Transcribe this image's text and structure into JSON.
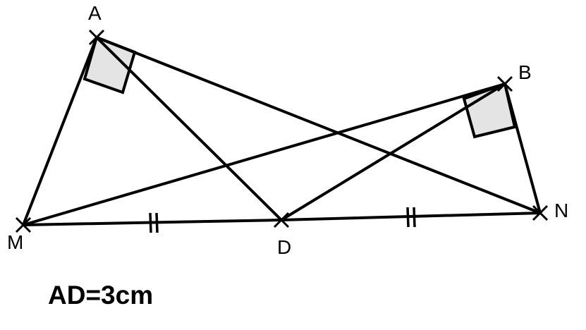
{
  "points": {
    "A": "A",
    "B": "B",
    "M": "M",
    "D": "D",
    "N": "N"
  },
  "caption": "AD=3cm",
  "segments": [
    {
      "from": "A",
      "to": "M"
    },
    {
      "from": "A",
      "to": "D"
    },
    {
      "from": "A",
      "to": "N"
    },
    {
      "from": "B",
      "to": "M"
    },
    {
      "from": "B",
      "to": "D"
    },
    {
      "from": "B",
      "to": "N"
    },
    {
      "from": "M",
      "to": "D"
    },
    {
      "from": "D",
      "to": "N"
    }
  ],
  "right_angles": [
    "A",
    "B"
  ],
  "equal_marks": [
    "MD",
    "DN"
  ],
  "colors": {
    "stroke": "#000000",
    "right_angle_fill": "#e4e4e4",
    "background": "#ffffff"
  }
}
